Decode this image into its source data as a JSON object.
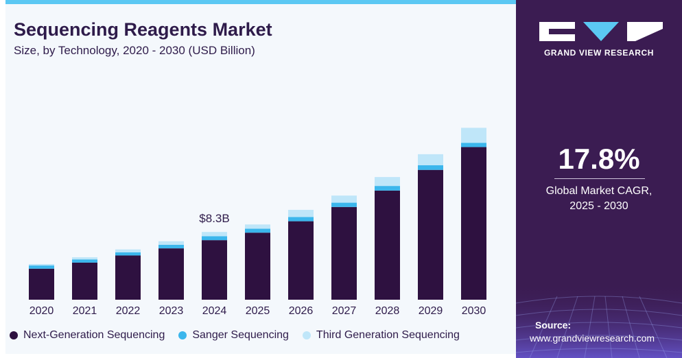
{
  "header": {
    "title": "Sequencing Reagents Market",
    "subtitle": "Size, by Technology, 2020 - 2030 (USD Billion)"
  },
  "colors": {
    "ngs": "#2e1140",
    "sanger": "#3bb6ec",
    "third": "#bfe6f9",
    "panel": "#3b1c52",
    "text": "#2e1b4a"
  },
  "chart_data": {
    "type": "bar",
    "stacked": true,
    "categories": [
      "2020",
      "2021",
      "2022",
      "2023",
      "2024",
      "2025",
      "2026",
      "2027",
      "2028",
      "2029",
      "2030"
    ],
    "series": [
      {
        "name": "Next-Generation Sequencing",
        "values": [
          4.35,
          5.2,
          6.2,
          7.2,
          8.35,
          9.4,
          11.0,
          13.0,
          15.3,
          18.2,
          21.4
        ]
      },
      {
        "name": "Sanger Sequencing",
        "values": [
          0.45,
          0.45,
          0.45,
          0.5,
          0.55,
          0.55,
          0.6,
          0.6,
          0.65,
          0.65,
          0.6
        ]
      },
      {
        "name": "Third Generation Sequencing",
        "values": [
          0.2,
          0.3,
          0.4,
          0.5,
          0.6,
          0.6,
          1.0,
          1.0,
          1.25,
          1.55,
          2.1
        ]
      }
    ],
    "annotations": [
      {
        "category": "2024",
        "label": "$8.3B"
      }
    ],
    "ylim": [
      0,
      25
    ],
    "grid": false,
    "legend": "bottom-left"
  },
  "legend": {
    "items": [
      {
        "label": "Next-Generation Sequencing"
      },
      {
        "label": "Sanger Sequencing"
      },
      {
        "label": "Third Generation Sequencing"
      }
    ]
  },
  "sidebar": {
    "brand": "GRAND VIEW RESEARCH",
    "cagr_value": "17.8%",
    "cagr_label_line1": "Global Market CAGR,",
    "cagr_label_line2": "2025 - 2030",
    "source_label": "Source:",
    "source_url": "www.grandviewresearch.com"
  }
}
